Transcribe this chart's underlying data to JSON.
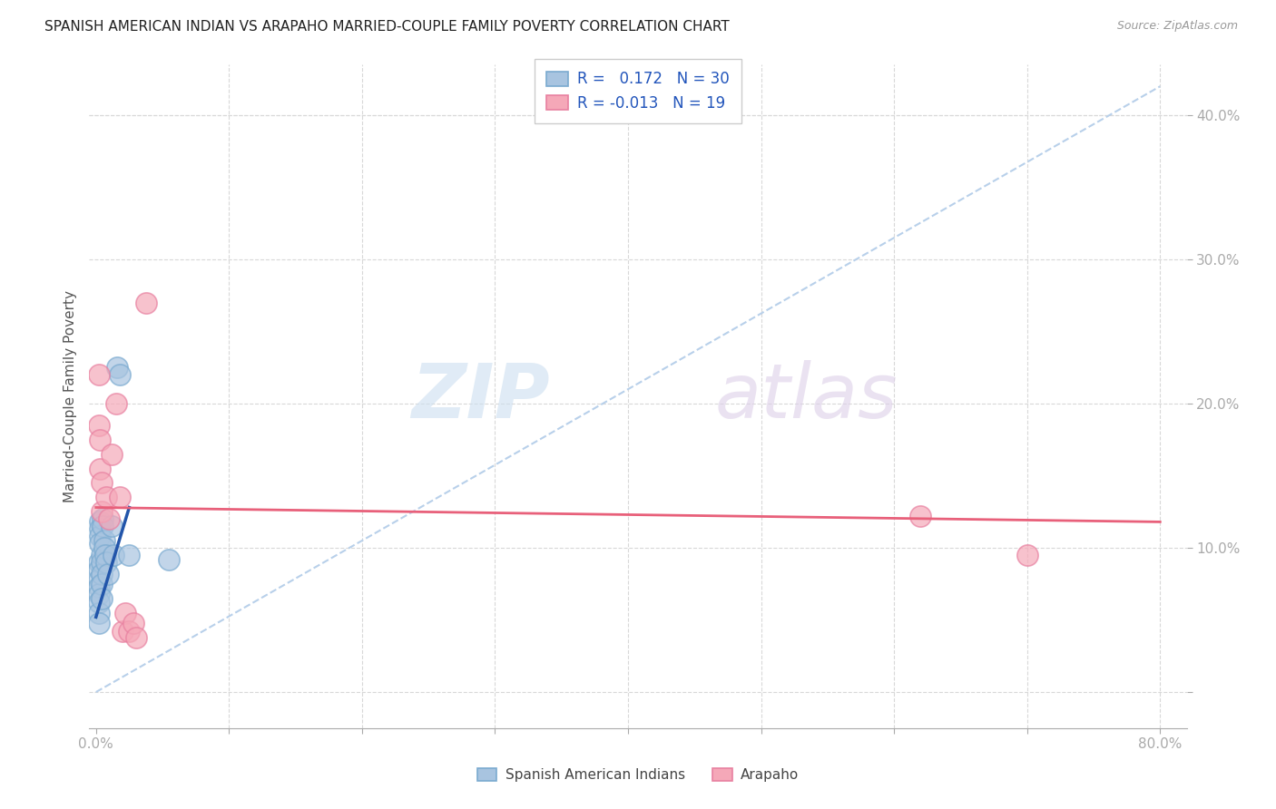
{
  "title": "SPANISH AMERICAN INDIAN VS ARAPAHO MARRIED-COUPLE FAMILY POVERTY CORRELATION CHART",
  "source": "Source: ZipAtlas.com",
  "ylabel": "Married-Couple Family Poverty",
  "ytick_labels": [
    "",
    "10.0%",
    "20.0%",
    "30.0%",
    "40.0%"
  ],
  "ytick_vals": [
    0.0,
    0.1,
    0.2,
    0.3,
    0.4
  ],
  "xtick_labels": [
    "0.0%",
    "",
    "",
    "",
    "",
    "",
    "",
    "",
    "80.0%"
  ],
  "xtick_vals": [
    0.0,
    0.1,
    0.2,
    0.3,
    0.4,
    0.5,
    0.6,
    0.7,
    0.8
  ],
  "xlim": [
    -0.005,
    0.82
  ],
  "ylim": [
    -0.025,
    0.435
  ],
  "blue_R": 0.172,
  "blue_N": 30,
  "pink_R": -0.013,
  "pink_N": 19,
  "blue_color": "#a8c4e0",
  "pink_color": "#f5a8b8",
  "blue_edge_color": "#7aaad0",
  "pink_edge_color": "#e880a0",
  "blue_line_color": "#2255aa",
  "pink_line_color": "#e8607a",
  "dashed_line_color": "#b8d0ea",
  "grid_color": "#d8d8d8",
  "legend_label_blue": "Spanish American Indians",
  "legend_label_pink": "Arapaho",
  "blue_scatter_x": [
    0.002,
    0.002,
    0.002,
    0.002,
    0.002,
    0.002,
    0.002,
    0.002,
    0.003,
    0.003,
    0.003,
    0.003,
    0.004,
    0.004,
    0.004,
    0.004,
    0.004,
    0.005,
    0.005,
    0.006,
    0.006,
    0.007,
    0.008,
    0.009,
    0.012,
    0.013,
    0.016,
    0.018,
    0.025,
    0.055
  ],
  "blue_scatter_y": [
    0.09,
    0.085,
    0.078,
    0.073,
    0.068,
    0.062,
    0.055,
    0.048,
    0.118,
    0.113,
    0.108,
    0.103,
    0.095,
    0.09,
    0.082,
    0.075,
    0.065,
    0.12,
    0.115,
    0.105,
    0.1,
    0.095,
    0.09,
    0.082,
    0.115,
    0.095,
    0.225,
    0.22,
    0.095,
    0.092
  ],
  "pink_scatter_x": [
    0.002,
    0.002,
    0.003,
    0.003,
    0.004,
    0.004,
    0.008,
    0.01,
    0.012,
    0.015,
    0.018,
    0.02,
    0.022,
    0.025,
    0.028,
    0.03,
    0.038,
    0.62,
    0.7
  ],
  "pink_scatter_y": [
    0.22,
    0.185,
    0.175,
    0.155,
    0.145,
    0.125,
    0.135,
    0.12,
    0.165,
    0.2,
    0.135,
    0.042,
    0.055,
    0.042,
    0.048,
    0.038,
    0.27,
    0.122,
    0.095
  ],
  "blue_line_x": [
    0.0,
    0.025
  ],
  "blue_line_y": [
    0.052,
    0.128
  ],
  "pink_line_x": [
    0.0,
    0.8
  ],
  "pink_line_y": [
    0.128,
    0.118
  ],
  "dash_line_x": [
    0.0,
    0.8
  ],
  "dash_line_y": [
    0.0,
    0.42
  ]
}
